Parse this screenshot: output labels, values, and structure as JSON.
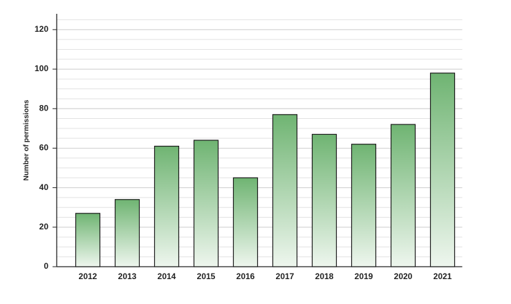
{
  "chart_data": {
    "type": "bar",
    "y_label": "Number of permissions",
    "categories": [
      "2012",
      "2013",
      "2014",
      "2015",
      "2016",
      "2017",
      "2018",
      "2019",
      "2020",
      "2021"
    ],
    "values": [
      27,
      34,
      61,
      64,
      45,
      77,
      67,
      62,
      72,
      98
    ],
    "color": "#6fb472",
    "color_bottom": "#eef6ee",
    "ylim": [
      0,
      128
    ],
    "yticks": [
      0,
      20,
      40,
      60,
      80,
      100,
      120
    ],
    "grid": true,
    "minor_grid_step": 5
  }
}
